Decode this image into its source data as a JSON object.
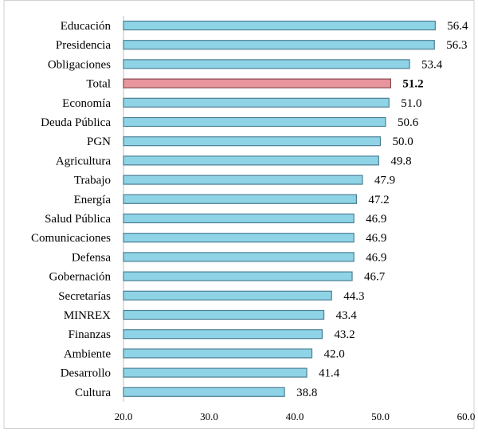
{
  "chart_data": {
    "type": "bar",
    "orientation": "horizontal",
    "title": "",
    "xlabel": "",
    "ylabel": "",
    "xlim": [
      20,
      60
    ],
    "xticks": [
      "20.0",
      "30.0",
      "40.0",
      "50.0",
      "60.0"
    ],
    "categories": [
      "Educación",
      "Presidencia",
      "Obligaciones",
      "Total",
      "Economía",
      "Deuda Pública",
      "PGN",
      "Agricultura",
      "Trabajo",
      "Energía",
      "Salud Pública",
      "Comunicaciones",
      "Defensa",
      "Gobernación",
      "Secretarías",
      "MINREX",
      "Finanzas",
      "Ambiente",
      "Desarrollo",
      "Cultura"
    ],
    "values": [
      56.4,
      56.3,
      53.4,
      51.2,
      51.0,
      50.6,
      50.0,
      49.8,
      47.9,
      47.2,
      46.9,
      46.9,
      46.9,
      46.7,
      44.3,
      43.4,
      43.2,
      42.0,
      41.4,
      38.8
    ],
    "value_labels": [
      "56.4",
      "56.3",
      "53.4",
      "51.2",
      "51.0",
      "50.6",
      "50.0",
      "49.8",
      "47.9",
      "47.2",
      "46.9",
      "46.9",
      "46.9",
      "46.7",
      "44.3",
      "43.4",
      "43.2",
      "42.0",
      "41.4",
      "38.8"
    ],
    "highlight_category": "Total",
    "grid": false,
    "legend": "none",
    "colors": {
      "bar_fill": "#8fd3e6",
      "bar_stroke": "#4a7f94",
      "highlight_fill": "#e8959d",
      "highlight_stroke": "#8a4a52",
      "axis": "#bfbfbf",
      "frame": "#d0d0d0"
    }
  }
}
